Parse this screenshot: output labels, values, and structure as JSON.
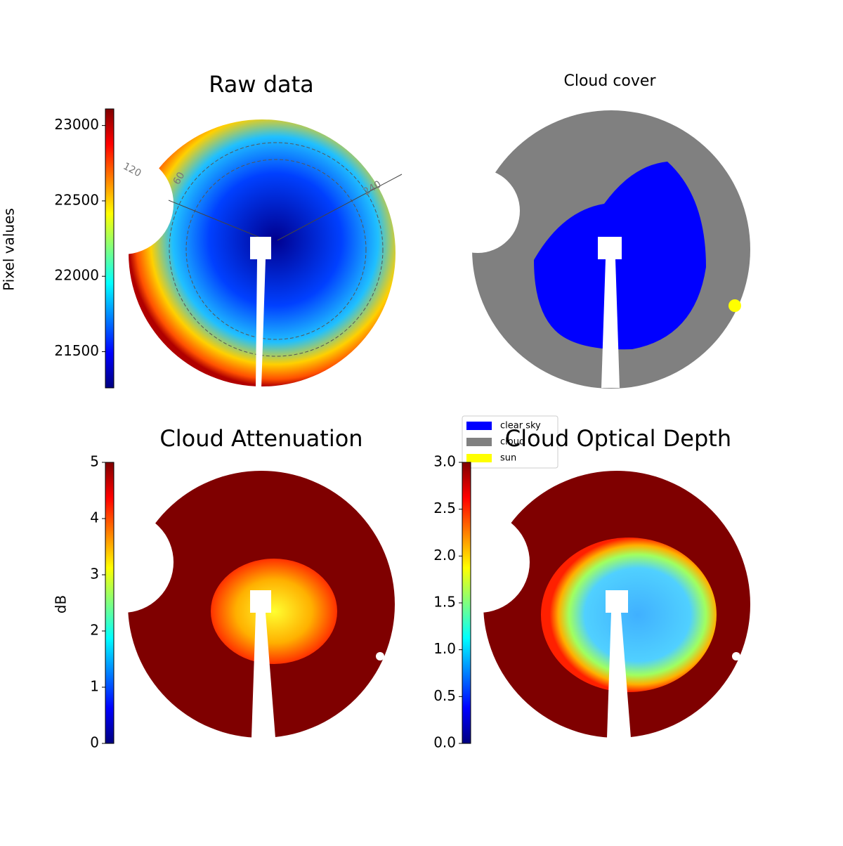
{
  "chart_data": [
    {
      "type": "image",
      "title": "Raw data",
      "colormap": "jet",
      "colorbar": {
        "label": "Pixel values",
        "ylim": [
          21260,
          23110
        ],
        "yticks": [
          21500,
          22000,
          22500,
          23000
        ]
      },
      "annotations": [
        "120",
        "60",
        "240"
      ]
    },
    {
      "type": "image",
      "title": "Cloud cover",
      "legend": [
        {
          "name": "clear sky",
          "color": "#0000ff"
        },
        {
          "name": "cloud",
          "color": "#808080"
        },
        {
          "name": "sun",
          "color": "#ffff00"
        }
      ]
    },
    {
      "type": "image",
      "title": "Cloud Attenuation",
      "colormap": "jet",
      "colorbar": {
        "label": "dB",
        "ylim": [
          0,
          5
        ],
        "yticks": [
          0,
          1,
          2,
          3,
          4,
          5
        ]
      }
    },
    {
      "type": "image",
      "title": "Cloud Optical Depth",
      "colormap": "jet",
      "colorbar": {
        "ylim": [
          0,
          3
        ],
        "yticks": [
          {
            "value": 0,
            "label": "0.0"
          },
          0.5,
          {
            "value": 1,
            "label": "1.0"
          },
          1.5,
          {
            "value": 2,
            "label": "2.0"
          },
          2.5,
          {
            "value": 3,
            "label": "3.0"
          }
        ]
      }
    }
  ]
}
